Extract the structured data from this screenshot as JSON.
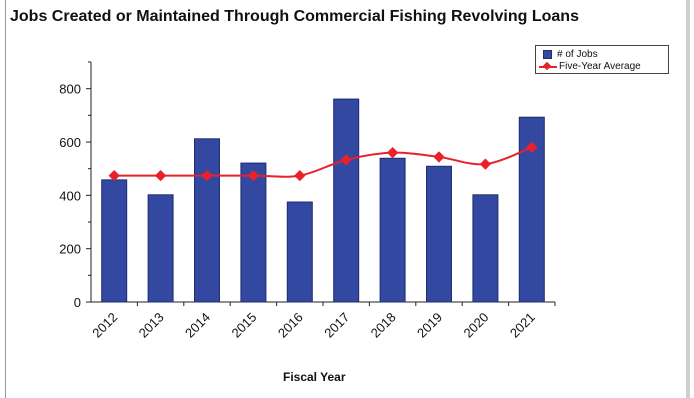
{
  "chart_data": {
    "type": "bar",
    "title": "Jobs Created or Maintained Through Commercial Fishing Revolving Loans",
    "xlabel": "Fiscal Year",
    "ylabel": "",
    "categories": [
      "2012",
      "2013",
      "2014",
      "2015",
      "2016",
      "2017",
      "2018",
      "2019",
      "2020",
      "2021"
    ],
    "series": [
      {
        "name": "# of Jobs",
        "type": "bar",
        "values": [
          458,
          402,
          612,
          521,
          375,
          761,
          539,
          509,
          402,
          693
        ]
      },
      {
        "name": "Five-Year Average",
        "type": "line",
        "values": [
          474,
          474,
          474,
          474,
          474,
          533,
          560,
          544,
          517,
          580
        ]
      }
    ],
    "y_ticks": [
      "0",
      "200",
      "400",
      "600",
      "800"
    ],
    "ylim": [
      0,
      900
    ],
    "grid": false,
    "legend_position": "top-right",
    "colors": {
      "bar": "#3348a0",
      "bar_edge": "#1f2e70",
      "line": "#e8212b"
    }
  }
}
